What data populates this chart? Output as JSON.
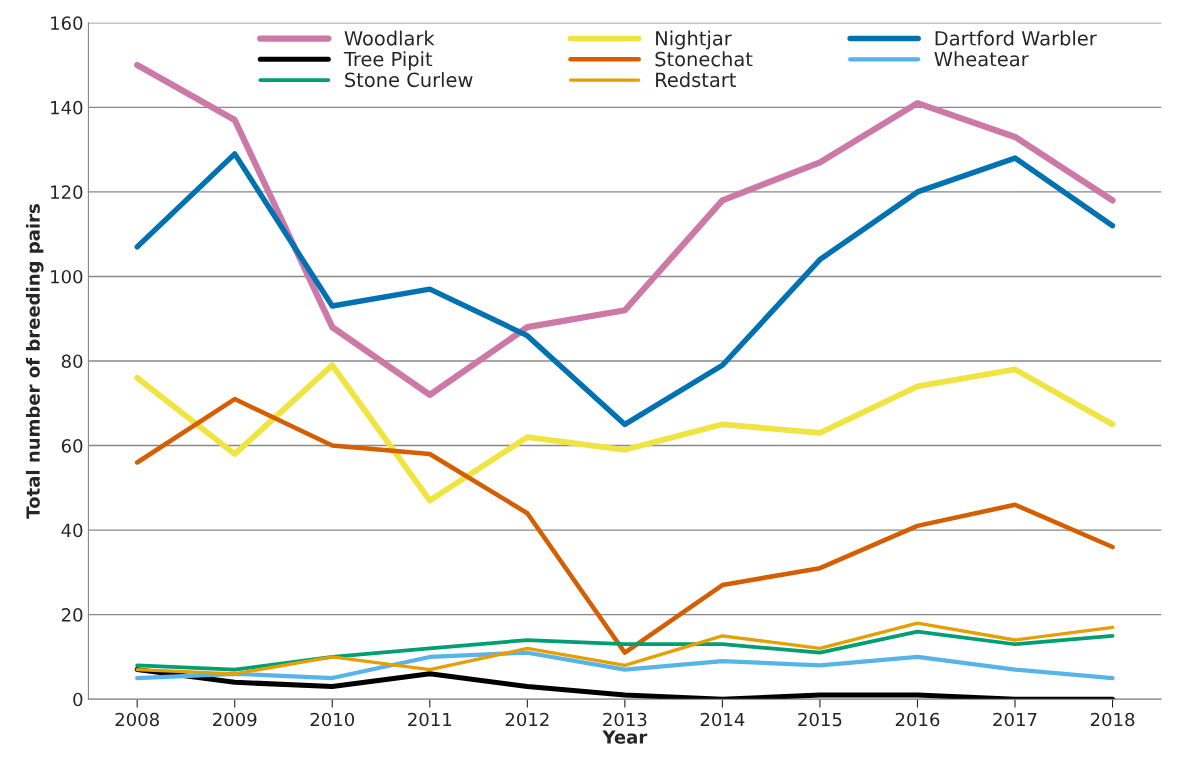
{
  "chart_data": {
    "type": "line",
    "xlabel": "Year",
    "ylabel": "Total number of breeding pairs",
    "categories": [
      "2008",
      "2009",
      "2010",
      "2011",
      "2012",
      "2013",
      "2014",
      "2015",
      "2016",
      "2017",
      "2018"
    ],
    "series": [
      {
        "name": "Woodlark",
        "color": "#cc79a7",
        "values": [
          150,
          137,
          88,
          72,
          88,
          92,
          118,
          127,
          141,
          133,
          118
        ]
      },
      {
        "name": "Nightjar",
        "color": "#f0e442",
        "values": [
          76,
          58,
          79,
          47,
          62,
          59,
          65,
          63,
          74,
          78,
          65
        ]
      },
      {
        "name": "Dartford Warbler",
        "color": "#0072b2",
        "values": [
          107,
          129,
          93,
          97,
          86,
          65,
          79,
          104,
          120,
          128,
          112
        ]
      },
      {
        "name": "Tree Pipit",
        "color": "#000000",
        "values": [
          7,
          4,
          3,
          6,
          3,
          1,
          0,
          1,
          1,
          0,
          0
        ]
      },
      {
        "name": "Stonechat",
        "color": "#d55e00",
        "values": [
          56,
          71,
          60,
          58,
          44,
          11,
          27,
          31,
          41,
          46,
          36
        ]
      },
      {
        "name": "Wheatear",
        "color": "#56b4e9",
        "values": [
          5,
          6,
          5,
          10,
          11,
          7,
          9,
          8,
          10,
          7,
          5
        ]
      },
      {
        "name": "Stone Curlew",
        "color": "#009e73",
        "values": [
          8,
          7,
          10,
          12,
          14,
          13,
          13,
          11,
          16,
          13,
          15
        ]
      },
      {
        "name": "Redstart",
        "color": "#e69f00",
        "values": [
          7,
          6,
          10,
          7,
          12,
          8,
          15,
          12,
          18,
          14,
          17
        ]
      }
    ],
    "ylim": [
      0,
      160
    ],
    "yticks": [
      0,
      20,
      40,
      60,
      80,
      100,
      120,
      140,
      160
    ],
    "grid": "y",
    "legend": "top",
    "marker": "none",
    "line_style": "solid"
  }
}
